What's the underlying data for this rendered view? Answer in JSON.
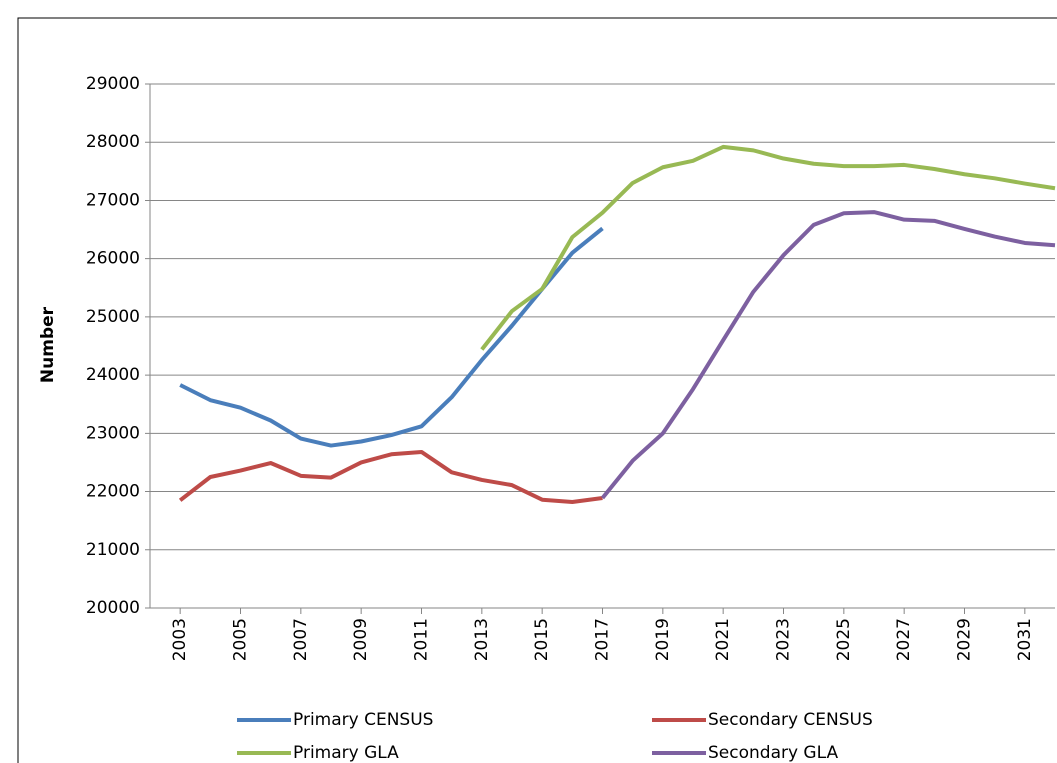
{
  "chart_data": {
    "type": "line",
    "y_label": "Number",
    "x": [
      2003,
      2004,
      2005,
      2006,
      2007,
      2008,
      2009,
      2010,
      2011,
      2012,
      2013,
      2014,
      2015,
      2016,
      2017,
      2018,
      2019,
      2020,
      2021,
      2022,
      2023,
      2024,
      2025,
      2026,
      2027,
      2028,
      2029,
      2030,
      2031,
      2032
    ],
    "series": [
      {
        "name": "Primary CENSUS",
        "color": "#4a7ebb",
        "values": [
          23830,
          23570,
          23440,
          23220,
          22910,
          22790,
          22860,
          22970,
          23120,
          23620,
          24260,
          24850,
          25480,
          26100,
          26520,
          null,
          null,
          null,
          null,
          null,
          null,
          null,
          null,
          null,
          null,
          null,
          null,
          null,
          null,
          null
        ]
      },
      {
        "name": "Secondary CENSUS",
        "color": "#be4b48",
        "values": [
          21850,
          22250,
          22360,
          22490,
          22270,
          22240,
          22500,
          22640,
          22680,
          22330,
          22200,
          22110,
          21860,
          21820,
          21890,
          null,
          null,
          null,
          null,
          null,
          null,
          null,
          null,
          null,
          null,
          null,
          null,
          null,
          null,
          null
        ]
      },
      {
        "name": "Primary GLA",
        "color": "#98b954",
        "values": [
          null,
          null,
          null,
          null,
          null,
          null,
          null,
          null,
          null,
          null,
          24440,
          25100,
          25480,
          26370,
          26790,
          27300,
          27570,
          27680,
          27920,
          27860,
          27720,
          27630,
          27590,
          27590,
          27610,
          27540,
          27450,
          27380,
          27290,
          27210
        ]
      },
      {
        "name": "Secondary GLA",
        "color": "#7d60a0",
        "values": [
          null,
          null,
          null,
          null,
          null,
          null,
          null,
          null,
          null,
          null,
          null,
          null,
          null,
          null,
          21890,
          22530,
          23000,
          23760,
          24600,
          25430,
          26060,
          26580,
          26780,
          26800,
          26670,
          26650,
          26510,
          26380,
          26270,
          26230
        ]
      }
    ],
    "xlim": [
      2002,
      2032
    ],
    "xticks": [
      2003,
      2005,
      2007,
      2009,
      2011,
      2013,
      2015,
      2017,
      2019,
      2021,
      2023,
      2025,
      2027,
      2029,
      2031
    ],
    "ylim": [
      20000,
      29000
    ],
    "yticks": [
      20000,
      21000,
      22000,
      23000,
      24000,
      25000,
      26000,
      27000,
      28000,
      29000
    ],
    "grid": true,
    "legend": "bottom"
  }
}
